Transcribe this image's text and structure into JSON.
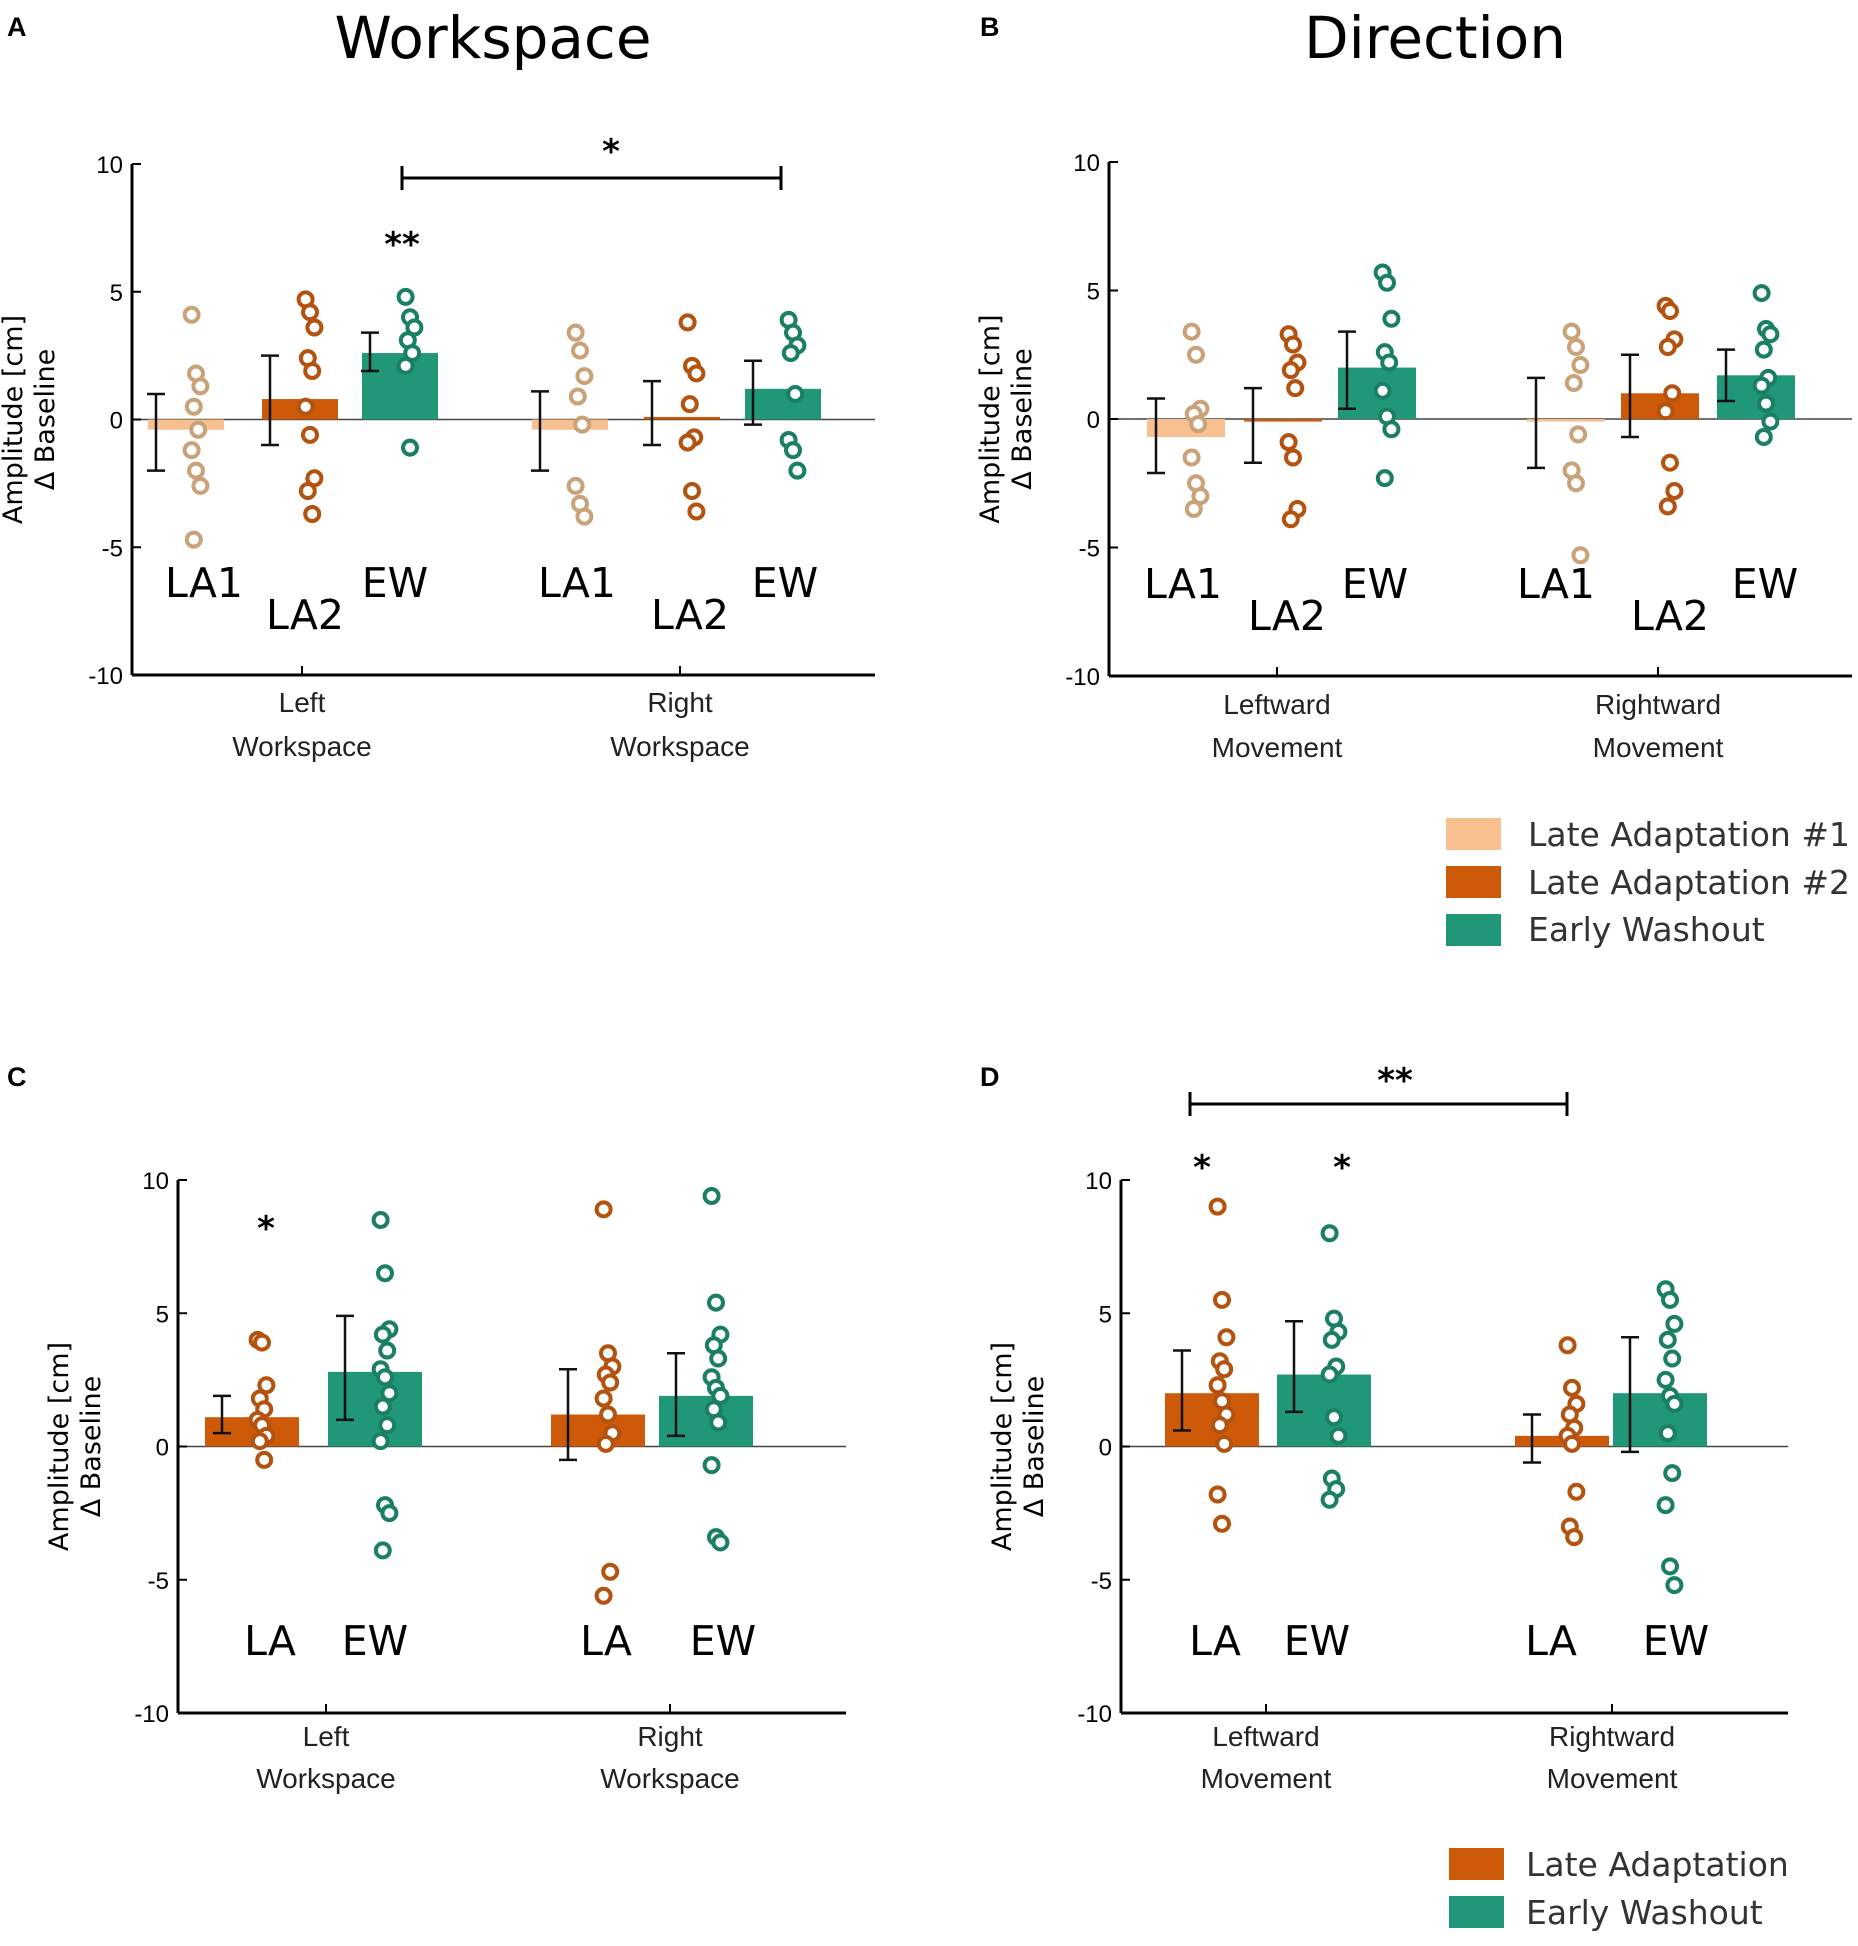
{
  "colors": {
    "LA1": "#f7c08e",
    "LA2": "#cc5a08",
    "LA": "#cc5a08",
    "EW": "#1f9778",
    "LA1_dot": "#c9a27a",
    "LA2_dot": "#b4530f",
    "LA_dot": "#b4530f",
    "EW_dot": "#1b7f66"
  },
  "column_titles": {
    "left": "Workspace",
    "right": "Direction"
  },
  "legend_top": [
    {
      "key": "LA1",
      "label": "Late Adaptation #1"
    },
    {
      "key": "LA2",
      "label": "Late Adaptation #2"
    },
    {
      "key": "EW",
      "label": "Early Washout"
    }
  ],
  "legend_bottom": [
    {
      "key": "LA",
      "label": "Late Adaptation"
    },
    {
      "key": "EW",
      "label": "Early Washout"
    }
  ],
  "chart_data": [
    {
      "panel": "A",
      "type": "bar",
      "ylabel": [
        "Amplitude [cm]",
        "Δ Baseline"
      ],
      "ylim": [
        -10,
        10
      ],
      "yticks": [
        "10",
        "5",
        "0",
        "-5",
        "-10"
      ],
      "categories": [
        [
          "Left",
          "Workspace"
        ],
        [
          "Right",
          "Workspace"
        ]
      ],
      "series": [
        {
          "name": "LA1",
          "label": "LA1",
          "values": [
            -0.4,
            -0.4
          ],
          "err_low": [
            -2.0,
            -2.0
          ],
          "err_high": [
            1.0,
            1.1
          ],
          "points": [
            [
              4.1,
              1.8,
              1.3,
              0.5,
              -0.4,
              -1.2,
              -2.0,
              -2.6,
              -4.7
            ],
            [
              3.4,
              2.7,
              1.7,
              0.9,
              -0.2,
              -2.6,
              -3.3,
              -3.8
            ]
          ]
        },
        {
          "name": "LA2",
          "label": "LA2",
          "values": [
            0.8,
            0.1
          ],
          "err_low": [
            -1.0,
            -1.0
          ],
          "err_high": [
            2.5,
            1.5
          ],
          "points": [
            [
              4.7,
              4.2,
              3.6,
              2.4,
              1.9,
              0.5,
              -0.6,
              -2.3,
              -2.8,
              -3.7
            ],
            [
              3.8,
              2.1,
              1.8,
              0.6,
              -0.7,
              -0.9,
              -2.8,
              -3.6
            ]
          ]
        },
        {
          "name": "EW",
          "label": "EW",
          "values": [
            2.6,
            1.2
          ],
          "err_low": [
            1.9,
            -0.2
          ],
          "err_high": [
            3.4,
            2.3
          ],
          "points": [
            [
              4.8,
              4.0,
              3.6,
              3.1,
              2.6,
              2.1,
              -1.1
            ],
            [
              3.9,
              3.4,
              2.9,
              2.6,
              1.0,
              -0.8,
              -1.2,
              -2.0
            ]
          ]
        }
      ],
      "annotations": {
        "top_star": "**",
        "bracket_star": "*"
      }
    },
    {
      "panel": "B",
      "type": "bar",
      "ylabel": [
        "Amplitude [cm]",
        "Δ Baseline"
      ],
      "ylim": [
        -10,
        10
      ],
      "yticks": [
        "10",
        "5",
        "0",
        "-5",
        "-10"
      ],
      "categories": [
        [
          "Leftward",
          "Movement"
        ],
        [
          "Rightward",
          "Movement"
        ]
      ],
      "series": [
        {
          "name": "LA1",
          "label": "LA1",
          "values": [
            -0.7,
            -0.1
          ],
          "err_low": [
            -2.1,
            -1.9
          ],
          "err_high": [
            0.8,
            1.6
          ],
          "points": [
            [
              3.4,
              2.5,
              0.4,
              0.2,
              -0.2,
              -1.5,
              -2.5,
              -3.0,
              -3.5
            ],
            [
              3.4,
              2.8,
              2.1,
              1.4,
              -0.6,
              -2.0,
              -2.5,
              -5.3
            ]
          ]
        },
        {
          "name": "LA2",
          "label": "LA2",
          "values": [
            -0.1,
            1.0
          ],
          "err_low": [
            -1.7,
            -0.7
          ],
          "err_high": [
            1.2,
            2.5
          ],
          "points": [
            [
              3.3,
              2.9,
              2.2,
              1.9,
              1.2,
              -0.9,
              -1.5,
              -3.5,
              -3.9
            ],
            [
              4.4,
              4.2,
              3.1,
              2.8,
              1.0,
              0.3,
              -1.7,
              -2.8,
              -3.4
            ]
          ]
        },
        {
          "name": "EW",
          "label": "EW",
          "values": [
            2.0,
            1.7
          ],
          "err_low": [
            0.4,
            0.7
          ],
          "err_high": [
            3.4,
            2.7
          ],
          "points": [
            [
              5.7,
              5.3,
              3.9,
              2.6,
              2.2,
              1.1,
              0.1,
              -0.4,
              -2.3
            ],
            [
              4.9,
              3.5,
              3.3,
              2.7,
              1.6,
              1.3,
              0.6,
              -0.1,
              -0.7
            ]
          ]
        }
      ]
    },
    {
      "panel": "C",
      "type": "bar",
      "ylabel": [
        "Amplitude [cm]",
        "Δ Baseline"
      ],
      "ylim": [
        -10,
        10
      ],
      "yticks": [
        "10",
        "5",
        "0",
        "-5",
        "-10"
      ],
      "categories": [
        [
          "Left",
          "Workspace"
        ],
        [
          "Right",
          "Workspace"
        ]
      ],
      "series": [
        {
          "name": "LA",
          "label": "LA",
          "values": [
            1.1,
            1.2
          ],
          "err_low": [
            0.5,
            -0.5
          ],
          "err_high": [
            1.9,
            2.9
          ],
          "points": [
            [
              4.0,
              3.9,
              2.3,
              1.8,
              1.4,
              1.0,
              0.8,
              0.4,
              0.2,
              -0.5
            ],
            [
              8.9,
              3.5,
              3.0,
              2.7,
              2.4,
              1.8,
              1.2,
              0.5,
              0.1,
              -4.7,
              -5.6
            ]
          ]
        },
        {
          "name": "EW",
          "label": "EW",
          "values": [
            2.8,
            1.9
          ],
          "err_low": [
            1.0,
            0.4
          ],
          "err_high": [
            4.9,
            3.5
          ],
          "points": [
            [
              8.5,
              6.5,
              4.4,
              4.2,
              3.6,
              2.9,
              2.6,
              2.0,
              1.5,
              0.8,
              0.2,
              -2.2,
              -2.5,
              -3.9
            ],
            [
              9.4,
              5.4,
              4.2,
              3.8,
              3.3,
              2.6,
              2.2,
              1.9,
              1.4,
              0.9,
              -0.7,
              -3.4,
              -3.6
            ]
          ]
        }
      ],
      "annotations": {
        "top_star": "*"
      }
    },
    {
      "panel": "D",
      "type": "bar",
      "ylabel": [
        "Amplitude [cm]",
        "Δ Baseline"
      ],
      "ylim": [
        -10,
        10
      ],
      "yticks": [
        "10",
        "5",
        "0",
        "-5",
        "-10"
      ],
      "categories": [
        [
          "Leftward",
          "Movement"
        ],
        [
          "Rightward",
          "Movement"
        ]
      ],
      "series": [
        {
          "name": "LA",
          "label": "LA",
          "values": [
            2.0,
            0.4
          ],
          "err_low": [
            0.6,
            -0.6
          ],
          "err_high": [
            3.6,
            1.2
          ],
          "points": [
            [
              9.0,
              5.5,
              4.1,
              3.2,
              2.9,
              2.3,
              1.7,
              1.2,
              0.8,
              0.1,
              -1.8,
              -2.9
            ],
            [
              3.8,
              2.2,
              1.6,
              1.2,
              0.7,
              0.4,
              0.1,
              -1.7,
              -3.0,
              -3.4
            ]
          ]
        },
        {
          "name": "EW",
          "label": "EW",
          "values": [
            2.7,
            2.0
          ],
          "err_low": [
            1.3,
            -0.2
          ],
          "err_high": [
            4.7,
            4.1
          ],
          "points": [
            [
              8.0,
              4.8,
              4.3,
              4.0,
              3.0,
              2.7,
              1.1,
              0.4,
              -1.2,
              -1.6,
              -2.0
            ],
            [
              5.9,
              5.5,
              4.6,
              4.0,
              3.3,
              2.5,
              1.9,
              1.6,
              0.5,
              -1.0,
              -2.2,
              -4.5,
              -5.2
            ]
          ]
        }
      ],
      "annotations": {
        "top_star_left_LA": "*",
        "top_star_left_EW": "*",
        "bracket_star": "**"
      }
    }
  ]
}
